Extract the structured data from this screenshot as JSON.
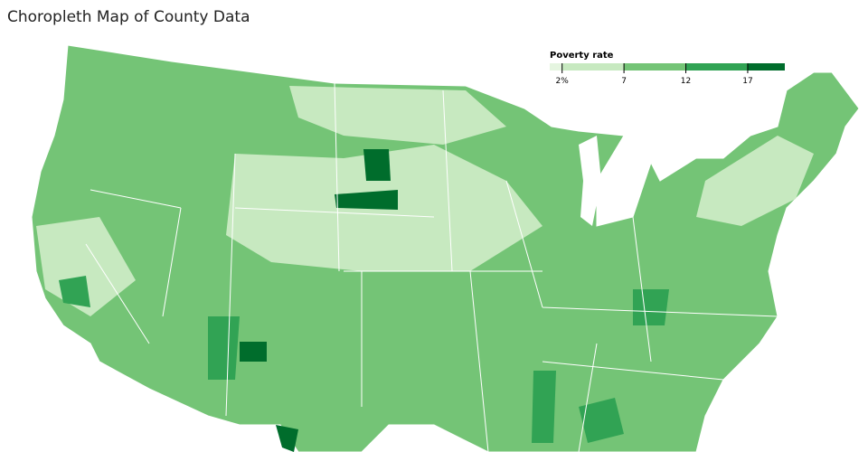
{
  "title": "Choropleth Map of County Data",
  "legend": {
    "title": "Poverty rate",
    "ticks": [
      {
        "value": 2,
        "label": "2%"
      },
      7,
      12,
      17
    ],
    "lim": [
      1,
      20
    ],
    "colors": [
      "#e5f5e0",
      "#c7e9c0",
      "#74c476",
      "#31a354",
      "#006d2c"
    ]
  }
}
